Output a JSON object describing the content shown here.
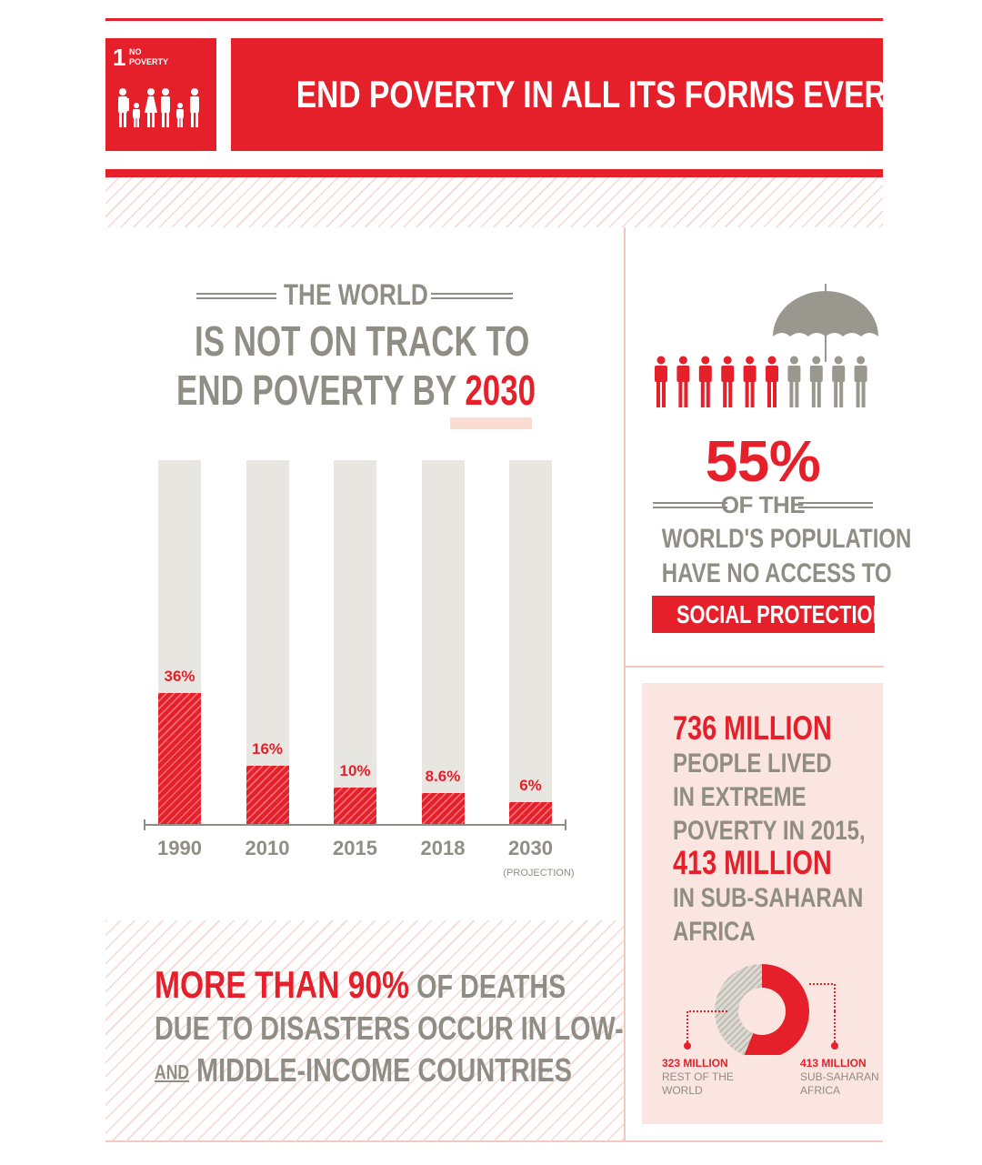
{
  "header": {
    "goal_number": "1",
    "goal_label_line1": "NO",
    "goal_label_line2": "POVERTY",
    "title": "END POVERTY IN ALL ITS FORMS EVERYWHERE"
  },
  "headline": {
    "line1": "THE WORLD",
    "line2": "IS NOT ON TRACK TO",
    "line3_prefix": "END POVERTY BY",
    "line3_highlight": "2030"
  },
  "chart_data": {
    "type": "bar",
    "categories": [
      "1990",
      "2010",
      "2015",
      "2018",
      "2030"
    ],
    "values": [
      36,
      16,
      10,
      8.6,
      6
    ],
    "value_labels": [
      "36%",
      "16%",
      "10%",
      "8.6%",
      "6%"
    ],
    "category_notes": [
      "",
      "",
      "",
      "",
      "(PROJECTION)"
    ],
    "ylim": [
      0,
      100
    ],
    "title": "",
    "xlabel": "",
    "ylabel": "",
    "colors": {
      "fill": "#e5202b",
      "track": "#e8e6e1"
    }
  },
  "social_protection": {
    "percent": "55%",
    "line1": "OF THE",
    "line2": "WORLD'S POPULATION",
    "line3": "HAVE NO ACCESS TO",
    "highlight": "SOCIAL PROTECTION",
    "people_total": 10,
    "people_red": 6
  },
  "extreme_poverty": {
    "line1": "736 MILLION",
    "line2": "PEOPLE LIVED",
    "line3": "IN EXTREME",
    "line4": "POVERTY IN 2015,",
    "line5": "413 MILLION",
    "line6": "IN SUB-SAHARAN",
    "line7": "AFRICA",
    "donut": {
      "segments": [
        {
          "label": "413 MILLION",
          "sub1": "SUB-SAHARAN",
          "sub2": "AFRICA",
          "value": 413,
          "color": "#e5202b"
        },
        {
          "label": "323 MILLION",
          "sub1": "REST OF THE",
          "sub2": "WORLD",
          "value": 323,
          "color": "#cfccc5"
        }
      ]
    }
  },
  "disasters": {
    "red_part": "MORE THAN 90%",
    "rest1": "OF DEATHS",
    "line2": "DUE TO DISASTERS OCCUR IN LOW-",
    "line3_underlined": "AND",
    "line3_rest": "MIDDLE-INCOME COUNTRIES"
  },
  "colors": {
    "accent": "#e5202b",
    "text_grey": "#8f8d84",
    "pink": "#fbe5e0"
  }
}
